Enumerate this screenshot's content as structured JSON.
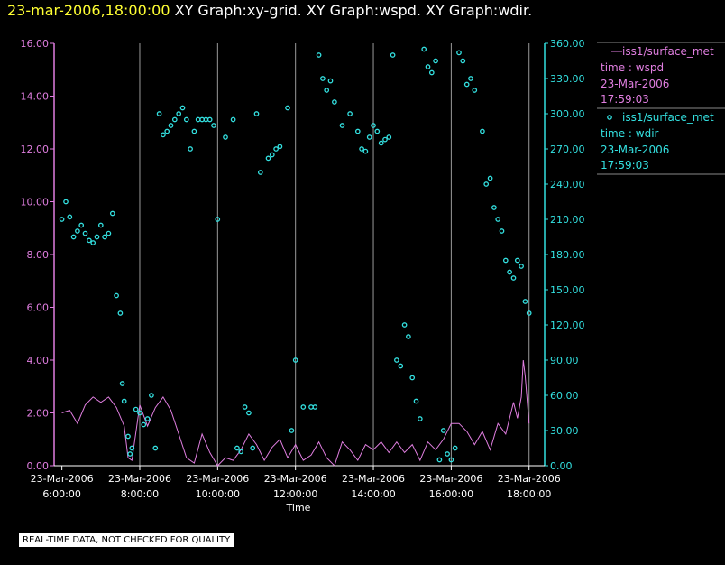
{
  "header": {
    "date_label": "23-mar-2006,18:00:00",
    "graphs_label": " XY Graph:xy-grid.  XY Graph:wspd.  XY Graph:wdir."
  },
  "disclaimer": "REAL-TIME DATA, NOT CHECKED FOR QUALITY",
  "chart_data": {
    "type": "scatter",
    "title": "23-mar-2006,18:00:00  XY Graph:xy-grid.  XY Graph:wspd.  XY Graph:wdir.",
    "xlabel": "Time",
    "x_range_hours": [
      5.8,
      18.4
    ],
    "x_ticks": [
      {
        "hour": 6,
        "date": "23-Mar-2006",
        "time": "6:00:00"
      },
      {
        "hour": 8,
        "date": "23-Mar-2006",
        "time": "8:00:00"
      },
      {
        "hour": 10,
        "date": "23-Mar-2006",
        "time": "10:00:00"
      },
      {
        "hour": 12,
        "date": "23-Mar-2006",
        "time": "12:00:00"
      },
      {
        "hour": 14,
        "date": "23-Mar-2006",
        "time": "14:00:00"
      },
      {
        "hour": 16,
        "date": "23-Mar-2006",
        "time": "16:00:00"
      },
      {
        "hour": 18,
        "date": "23-Mar-2006",
        "time": "18:00:00"
      }
    ],
    "grid_lines_hours": [
      8,
      10,
      12,
      14,
      16,
      18
    ],
    "left_axis": {
      "ylim": [
        0,
        16
      ],
      "ticks": [
        "0.00",
        "2.00",
        "4.00",
        "6.00",
        "8.00",
        "10.00",
        "12.00",
        "14.00",
        "16.00"
      ],
      "tick_values": [
        0,
        2,
        4,
        6,
        8,
        10,
        12,
        14,
        16
      ],
      "color": "#e07ee0"
    },
    "right_axis": {
      "ylim": [
        0,
        360
      ],
      "ticks": [
        "0.00",
        "30.00",
        "60.00",
        "90.00",
        "120.00",
        "150.00",
        "180.00",
        "210.00",
        "240.00",
        "270.00",
        "300.00",
        "330.00",
        "360.00"
      ],
      "tick_values": [
        0,
        30,
        60,
        90,
        120,
        150,
        180,
        210,
        240,
        270,
        300,
        330,
        360
      ],
      "color": "#33e0e0"
    },
    "legend": [
      {
        "marker": "line",
        "name": "iss1/surface_met",
        "var": "time : wspd",
        "date": "23-Mar-2006",
        "time": "17:59:03",
        "color": "#e07ee0"
      },
      {
        "marker": "circle",
        "name": "iss1/surface_met",
        "var": "time : wdir",
        "date": "23-Mar-2006",
        "time": "17:59:03",
        "color": "#33e0e0"
      }
    ],
    "series": [
      {
        "name": "wspd",
        "axis": "left",
        "style": "line",
        "color": "#e07ee0",
        "x": [
          6.0,
          6.2,
          6.4,
          6.6,
          6.8,
          7.0,
          7.2,
          7.4,
          7.6,
          7.7,
          7.8,
          8.0,
          8.2,
          8.4,
          8.6,
          8.8,
          9.0,
          9.2,
          9.4,
          9.6,
          9.8,
          10.0,
          10.2,
          10.4,
          10.6,
          10.8,
          11.0,
          11.2,
          11.4,
          11.6,
          11.8,
          12.0,
          12.2,
          12.4,
          12.6,
          12.8,
          13.0,
          13.2,
          13.4,
          13.6,
          13.8,
          14.0,
          14.2,
          14.4,
          14.6,
          14.8,
          15.0,
          15.2,
          15.4,
          15.6,
          15.8,
          16.0,
          16.2,
          16.4,
          16.6,
          16.8,
          17.0,
          17.2,
          17.4,
          17.6,
          17.7,
          17.8,
          17.85,
          17.9,
          18.0
        ],
        "y": [
          2.0,
          2.1,
          1.6,
          2.3,
          2.6,
          2.4,
          2.6,
          2.2,
          1.5,
          0.3,
          0.2,
          2.3,
          1.5,
          2.2,
          2.6,
          2.1,
          1.2,
          0.3,
          0.1,
          1.2,
          0.5,
          0.0,
          0.3,
          0.2,
          0.6,
          1.2,
          0.8,
          0.2,
          0.7,
          1.0,
          0.3,
          0.8,
          0.2,
          0.4,
          0.9,
          0.3,
          0.0,
          0.9,
          0.6,
          0.2,
          0.8,
          0.6,
          0.9,
          0.5,
          0.9,
          0.5,
          0.8,
          0.2,
          0.9,
          0.6,
          1.0,
          1.6,
          1.6,
          1.3,
          0.8,
          1.3,
          0.6,
          1.6,
          1.2,
          2.4,
          1.8,
          2.6,
          4.0,
          3.4,
          1.6
        ]
      },
      {
        "name": "wdir",
        "axis": "right",
        "style": "circle",
        "color": "#33e0e0",
        "x": [
          6.0,
          6.1,
          6.2,
          6.3,
          6.4,
          6.5,
          6.6,
          6.7,
          6.8,
          6.9,
          7.0,
          7.1,
          7.2,
          7.3,
          7.4,
          7.5,
          7.55,
          7.6,
          7.7,
          7.75,
          7.8,
          7.9,
          8.0,
          8.1,
          8.2,
          8.3,
          8.4,
          8.5,
          8.6,
          8.7,
          8.8,
          8.9,
          9.0,
          9.1,
          9.2,
          9.3,
          9.4,
          9.5,
          9.6,
          9.7,
          9.8,
          9.9,
          10.0,
          10.2,
          10.4,
          10.5,
          10.6,
          10.7,
          10.8,
          10.9,
          11.0,
          11.1,
          11.3,
          11.4,
          11.5,
          11.6,
          11.8,
          11.9,
          12.0,
          12.2,
          12.4,
          12.5,
          12.6,
          12.7,
          12.8,
          12.9,
          13.0,
          13.2,
          13.4,
          13.6,
          13.7,
          13.8,
          13.9,
          14.0,
          14.1,
          14.2,
          14.3,
          14.4,
          14.5,
          14.6,
          14.7,
          14.8,
          14.9,
          15.0,
          15.1,
          15.2,
          15.3,
          15.4,
          15.5,
          15.6,
          15.7,
          15.8,
          15.9,
          16.0,
          16.1,
          16.2,
          16.3,
          16.4,
          16.5,
          16.6,
          16.8,
          16.9,
          17.0,
          17.1,
          17.2,
          17.3,
          17.4,
          17.5,
          17.6,
          17.7,
          17.8,
          17.9,
          18.0
        ],
        "y": [
          210,
          225,
          212,
          195,
          200,
          205,
          198,
          192,
          190,
          195,
          205,
          195,
          198,
          215,
          145,
          130,
          70,
          55,
          25,
          10,
          15,
          48,
          45,
          35,
          40,
          60,
          15,
          300,
          282,
          285,
          290,
          295,
          300,
          305,
          295,
          270,
          285,
          295,
          295,
          295,
          295,
          290,
          210,
          280,
          295,
          15,
          12,
          50,
          45,
          15,
          300,
          250,
          262,
          265,
          270,
          272,
          305,
          30,
          90,
          50,
          50,
          50,
          350,
          330,
          320,
          328,
          310,
          290,
          300,
          285,
          270,
          268,
          280,
          290,
          285,
          275,
          278,
          280,
          350,
          90,
          85,
          120,
          110,
          75,
          55,
          40,
          355,
          340,
          335,
          345,
          5,
          30,
          10,
          5,
          15,
          352,
          345,
          325,
          330,
          320,
          285,
          240,
          245,
          220,
          210,
          200,
          175,
          165,
          160,
          175,
          170,
          140,
          130
        ]
      }
    ]
  }
}
